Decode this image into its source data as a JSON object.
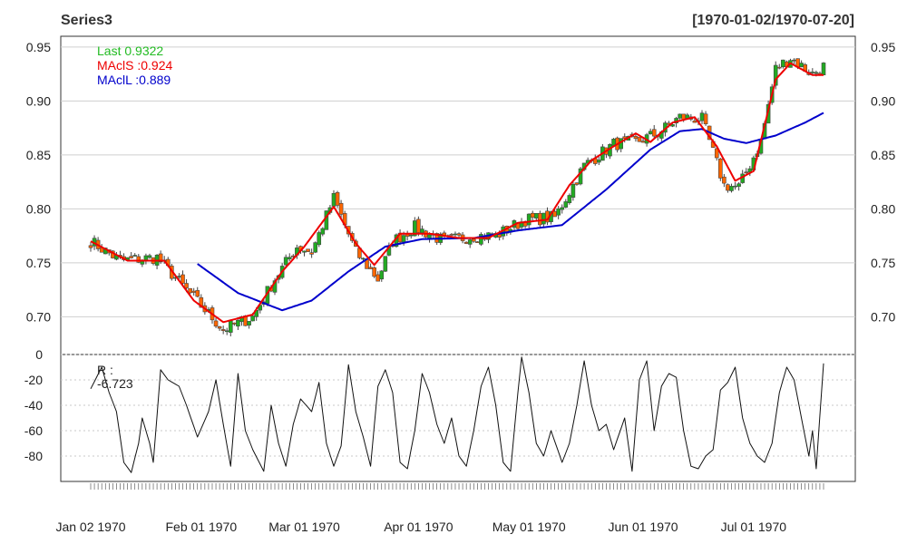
{
  "chart_data": {
    "title": "Series3",
    "date_range": "[1970-01-02/1970-07-20]",
    "x_labels": [
      "Jan 02 1970",
      "Feb 01 1970",
      "Mar 01 1970",
      "Apr 01 1970",
      "May 01 1970",
      "Jun 01 1970",
      "Jul 01 1970"
    ],
    "main": {
      "type": "candlestick",
      "ylim": [
        0.665,
        0.96
      ],
      "yticks": [
        "0.95",
        "0.90",
        "0.85",
        "0.80",
        "0.75",
        "0.70"
      ],
      "grid": true,
      "legend": [
        {
          "label": "Last 0.9322",
          "color": "#22bb22"
        },
        {
          "label": "MAclS :0.924",
          "color": "#ee0000"
        },
        {
          "label": "MAclL :0.889",
          "color": "#0000cc"
        }
      ],
      "close_anchors": [
        [
          0,
          0.77
        ],
        [
          8,
          0.752
        ],
        [
          18,
          0.755
        ],
        [
          26,
          0.725
        ],
        [
          36,
          0.688
        ],
        [
          44,
          0.7
        ],
        [
          50,
          0.735
        ],
        [
          56,
          0.765
        ],
        [
          60,
          0.76
        ],
        [
          66,
          0.81
        ],
        [
          72,
          0.76
        ],
        [
          78,
          0.735
        ],
        [
          82,
          0.77
        ],
        [
          88,
          0.783
        ],
        [
          96,
          0.77
        ],
        [
          104,
          0.775
        ],
        [
          110,
          0.775
        ],
        [
          118,
          0.79
        ],
        [
          126,
          0.792
        ],
        [
          134,
          0.84
        ],
        [
          142,
          0.86
        ],
        [
          148,
          0.862
        ],
        [
          154,
          0.87
        ],
        [
          160,
          0.885
        ],
        [
          166,
          0.883
        ],
        [
          172,
          0.822
        ],
        [
          176,
          0.82
        ],
        [
          182,
          0.862
        ],
        [
          186,
          0.93
        ],
        [
          190,
          0.94
        ],
        [
          196,
          0.925
        ],
        [
          199,
          0.932
        ]
      ],
      "short_ma_anchors": [
        [
          0,
          0.77
        ],
        [
          10,
          0.752
        ],
        [
          20,
          0.752
        ],
        [
          28,
          0.715
        ],
        [
          36,
          0.695
        ],
        [
          44,
          0.702
        ],
        [
          52,
          0.742
        ],
        [
          58,
          0.765
        ],
        [
          66,
          0.802
        ],
        [
          72,
          0.768
        ],
        [
          77,
          0.748
        ],
        [
          84,
          0.777
        ],
        [
          92,
          0.777
        ],
        [
          100,
          0.773
        ],
        [
          108,
          0.773
        ],
        [
          116,
          0.787
        ],
        [
          124,
          0.79
        ],
        [
          130,
          0.822
        ],
        [
          136,
          0.845
        ],
        [
          142,
          0.858
        ],
        [
          148,
          0.87
        ],
        [
          152,
          0.862
        ],
        [
          158,
          0.88
        ],
        [
          164,
          0.885
        ],
        [
          170,
          0.858
        ],
        [
          175,
          0.826
        ],
        [
          180,
          0.835
        ],
        [
          186,
          0.92
        ],
        [
          190,
          0.935
        ],
        [
          196,
          0.924
        ],
        [
          199,
          0.924
        ]
      ],
      "long_ma_anchors": [
        [
          29,
          0.749
        ],
        [
          40,
          0.722
        ],
        [
          52,
          0.706
        ],
        [
          60,
          0.715
        ],
        [
          70,
          0.742
        ],
        [
          80,
          0.765
        ],
        [
          90,
          0.772
        ],
        [
          104,
          0.773
        ],
        [
          116,
          0.78
        ],
        [
          128,
          0.785
        ],
        [
          140,
          0.818
        ],
        [
          152,
          0.855
        ],
        [
          160,
          0.872
        ],
        [
          166,
          0.874
        ],
        [
          172,
          0.865
        ],
        [
          178,
          0.861
        ],
        [
          186,
          0.868
        ],
        [
          194,
          0.88
        ],
        [
          199,
          0.889
        ]
      ]
    },
    "indicator": {
      "type": "line",
      "label": "R :",
      "value_label": "-6.723",
      "ylim": [
        -100,
        0
      ],
      "yticks": [
        "0",
        "-20",
        "-40",
        "-60",
        "-80"
      ],
      "anchors": [
        [
          0,
          -27
        ],
        [
          3,
          -10
        ],
        [
          5,
          -30
        ],
        [
          7,
          -45
        ],
        [
          9,
          -85
        ],
        [
          11,
          -93
        ],
        [
          13,
          -70
        ],
        [
          14,
          -50
        ],
        [
          16,
          -70
        ],
        [
          17,
          -85
        ],
        [
          19,
          -12
        ],
        [
          21,
          -20
        ],
        [
          24,
          -25
        ],
        [
          26,
          -40
        ],
        [
          29,
          -65
        ],
        [
          32,
          -45
        ],
        [
          34,
          -20
        ],
        [
          36,
          -55
        ],
        [
          38,
          -88
        ],
        [
          40,
          -15
        ],
        [
          42,
          -60
        ],
        [
          44,
          -75
        ],
        [
          47,
          -92
        ],
        [
          49,
          -40
        ],
        [
          51,
          -70
        ],
        [
          53,
          -88
        ],
        [
          55,
          -55
        ],
        [
          57,
          -35
        ],
        [
          60,
          -45
        ],
        [
          62,
          -22
        ],
        [
          64,
          -70
        ],
        [
          66,
          -88
        ],
        [
          68,
          -72
        ],
        [
          70,
          -8
        ],
        [
          72,
          -45
        ],
        [
          74,
          -65
        ],
        [
          76,
          -88
        ],
        [
          78,
          -25
        ],
        [
          80,
          -12
        ],
        [
          82,
          -30
        ],
        [
          84,
          -85
        ],
        [
          86,
          -90
        ],
        [
          88,
          -60
        ],
        [
          90,
          -15
        ],
        [
          92,
          -30
        ],
        [
          94,
          -55
        ],
        [
          96,
          -70
        ],
        [
          98,
          -50
        ],
        [
          100,
          -80
        ],
        [
          102,
          -88
        ],
        [
          104,
          -60
        ],
        [
          106,
          -25
        ],
        [
          108,
          -10
        ],
        [
          110,
          -40
        ],
        [
          112,
          -85
        ],
        [
          114,
          -92
        ],
        [
          116,
          -30
        ],
        [
          117,
          -2
        ],
        [
          119,
          -30
        ],
        [
          121,
          -70
        ],
        [
          123,
          -80
        ],
        [
          125,
          -60
        ],
        [
          128,
          -85
        ],
        [
          130,
          -70
        ],
        [
          132,
          -40
        ],
        [
          134,
          -5
        ],
        [
          136,
          -40
        ],
        [
          138,
          -60
        ],
        [
          140,
          -55
        ],
        [
          142,
          -75
        ],
        [
          145,
          -50
        ],
        [
          147,
          -92
        ],
        [
          149,
          -20
        ],
        [
          151,
          -5
        ],
        [
          153,
          -60
        ],
        [
          155,
          -25
        ],
        [
          157,
          -15
        ],
        [
          159,
          -18
        ],
        [
          161,
          -60
        ],
        [
          163,
          -88
        ],
        [
          165,
          -90
        ],
        [
          167,
          -80
        ],
        [
          169,
          -75
        ],
        [
          171,
          -28
        ],
        [
          173,
          -22
        ],
        [
          175,
          -10
        ],
        [
          177,
          -50
        ],
        [
          179,
          -70
        ],
        [
          181,
          -80
        ],
        [
          183,
          -85
        ],
        [
          185,
          -70
        ],
        [
          187,
          -30
        ],
        [
          189,
          -10
        ],
        [
          191,
          -20
        ],
        [
          193,
          -50
        ],
        [
          195,
          -80
        ],
        [
          196,
          -60
        ],
        [
          197,
          -90
        ],
        [
          199,
          -7
        ]
      ]
    }
  }
}
